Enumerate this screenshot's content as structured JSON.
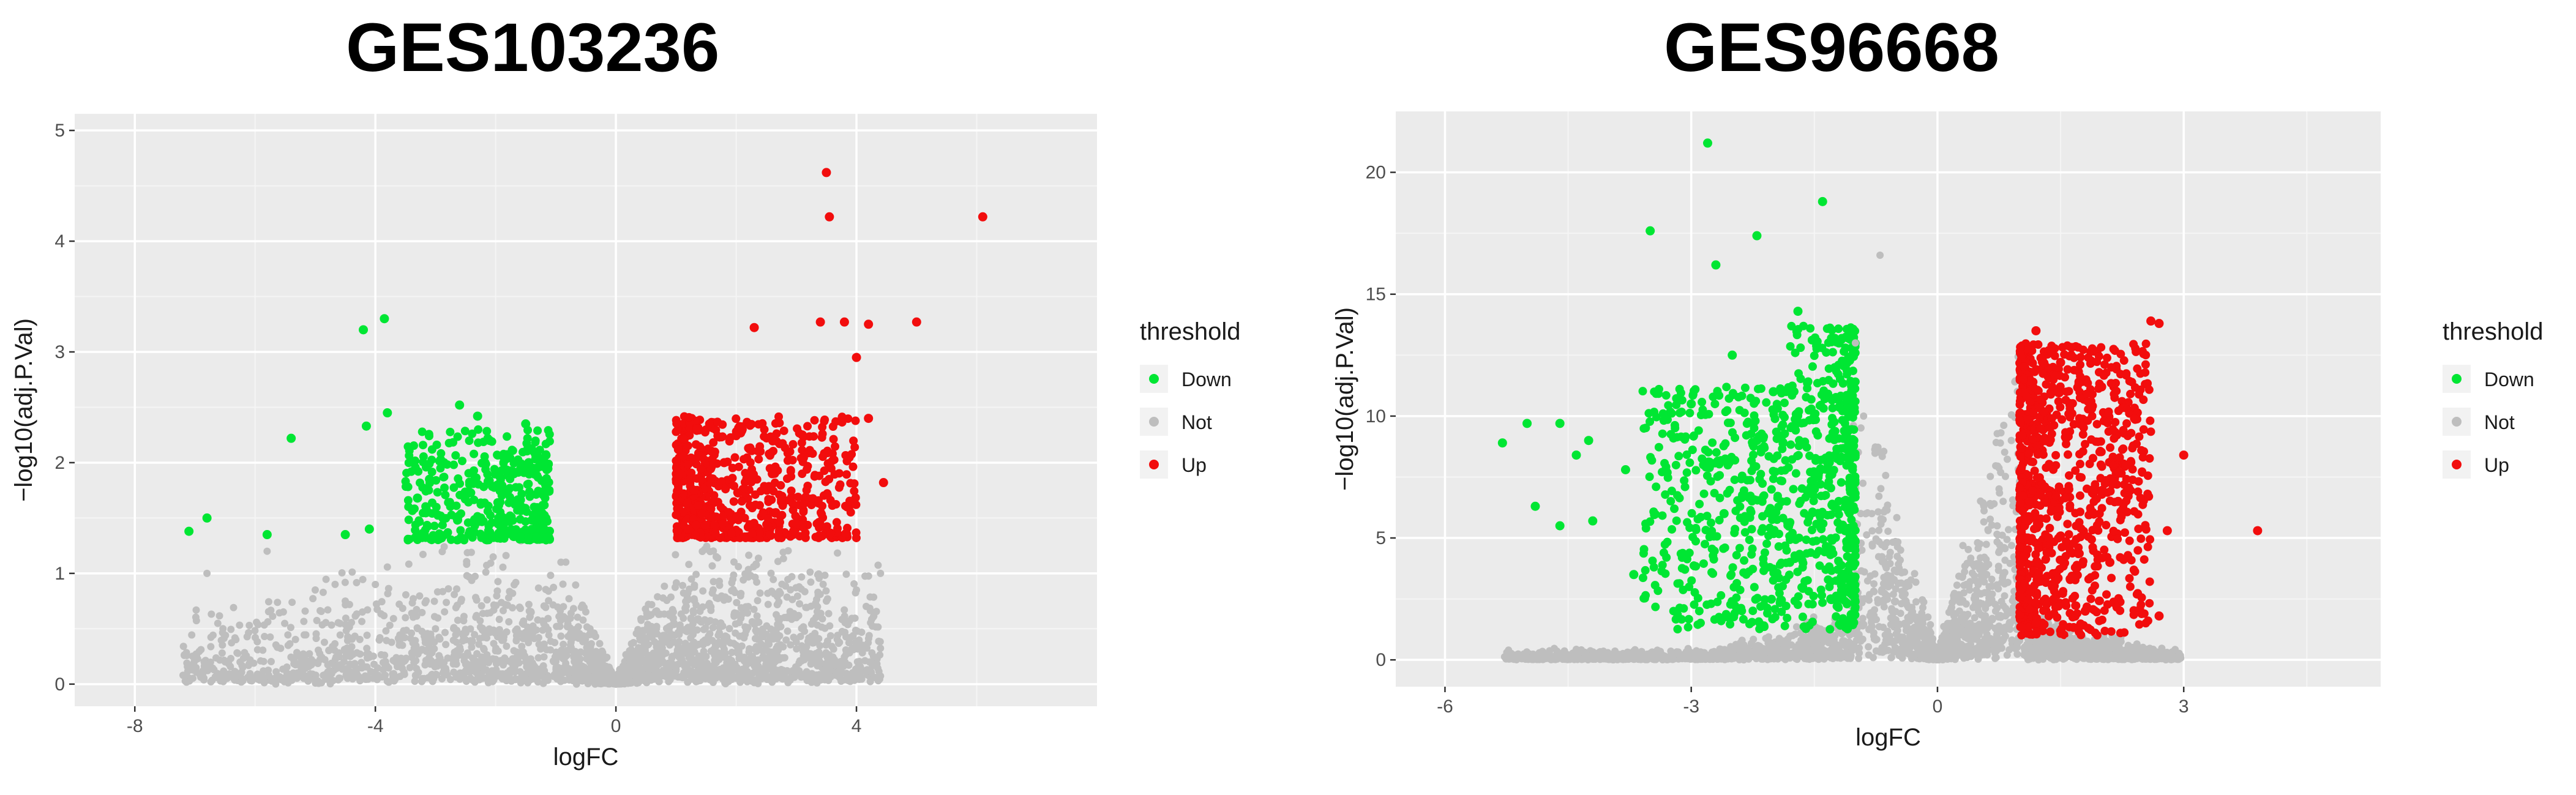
{
  "chart_data": [
    {
      "type": "scatter",
      "title": "GES103236",
      "xlabel": "logFC",
      "ylabel": "−log10(adj.P.Val)",
      "xlim": [
        -9,
        8
      ],
      "ylim": [
        -0.2,
        5.15
      ],
      "xticks": [
        -8,
        -4,
        0,
        4
      ],
      "xtick_labels": [
        "-8",
        "-4",
        "0",
        "4"
      ],
      "yticks": [
        0,
        1,
        2,
        3,
        4,
        5
      ],
      "ytick_labels": [
        "0",
        "1",
        "2",
        "3",
        "4",
        "5"
      ],
      "grid": true,
      "legend": {
        "title": "threshold",
        "position": "right",
        "entries": [
          "Down",
          "Not",
          "Up"
        ]
      },
      "colors": {
        "Down": "#00e633",
        "Not": "#bebebe",
        "Up": "#f20d0d"
      },
      "series": [
        {
          "name": "Down",
          "points": [
            [
              -7.1,
              1.38
            ],
            [
              -6.8,
              1.5
            ],
            [
              -5.8,
              1.35
            ],
            [
              -5.4,
              2.22
            ],
            [
              -4.5,
              1.35
            ],
            [
              -4.2,
              3.2
            ],
            [
              -4.15,
              2.33
            ],
            [
              -4.1,
              1.4
            ],
            [
              -3.85,
              3.3
            ],
            [
              -3.8,
              2.45
            ],
            [
              -2.6,
              2.52
            ],
            [
              -2.3,
              2.42
            ],
            [
              -1.5,
              2.35
            ],
            [
              -2.1,
              2.2
            ],
            [
              -3.1,
              1.85
            ],
            [
              -1.95,
              1.5
            ],
            [
              -2.9,
              1.32
            ],
            [
              -1.2,
              1.4
            ],
            [
              -1.45,
              2.0
            ],
            [
              -3.3,
              1.68
            ]
          ]
        },
        {
          "name": "Not",
          "points": [
            [
              -6.8,
              1.0
            ],
            [
              -5.8,
              1.2
            ],
            [
              -5.0,
              0.85
            ],
            [
              -4.5,
              0.75
            ],
            [
              -4.0,
              0.9
            ],
            [
              -3.5,
              0.6
            ],
            [
              -3.0,
              0.5
            ],
            [
              -2.5,
              0.4
            ],
            [
              -2.0,
              0.3
            ],
            [
              -1.5,
              0.2
            ],
            [
              -1.0,
              0.1
            ],
            [
              -0.5,
              0.04
            ],
            [
              0.0,
              0.0
            ],
            [
              0.5,
              0.05
            ],
            [
              1.0,
              0.12
            ],
            [
              1.5,
              0.25
            ],
            [
              2.0,
              0.35
            ],
            [
              2.5,
              0.45
            ],
            [
              3.0,
              0.6
            ],
            [
              3.5,
              0.75
            ],
            [
              4.0,
              0.85
            ],
            [
              4.4,
              1.0
            ]
          ]
        },
        {
          "name": "Up",
          "points": [
            [
              3.5,
              4.62
            ],
            [
              3.55,
              4.22
            ],
            [
              6.1,
              4.22
            ],
            [
              2.3,
              3.22
            ],
            [
              3.4,
              3.27
            ],
            [
              3.8,
              3.27
            ],
            [
              4.2,
              3.25
            ],
            [
              5.0,
              3.27
            ],
            [
              4.0,
              2.95
            ],
            [
              4.2,
              2.4
            ],
            [
              4.45,
              1.82
            ],
            [
              1.2,
              1.4
            ],
            [
              3.0,
              1.45
            ],
            [
              1.8,
              2.0
            ],
            [
              2.6,
              1.9
            ],
            [
              1.3,
              1.75
            ],
            [
              2.1,
              2.3
            ],
            [
              3.1,
              2.25
            ]
          ]
        }
      ]
    },
    {
      "type": "scatter",
      "title": "GES96668",
      "xlabel": "logFC",
      "ylabel": "−log10(adj.P.Val)",
      "xlim": [
        -6.6,
        5.4
      ],
      "ylim": [
        -1.1,
        22.5
      ],
      "xticks": [
        -6,
        -3,
        0,
        3
      ],
      "xtick_labels": [
        "-6",
        "-3",
        "0",
        "3"
      ],
      "yticks": [
        0,
        5,
        10,
        15,
        20
      ],
      "ytick_labels": [
        "0",
        "5",
        "10",
        "15",
        "20"
      ],
      "grid": true,
      "legend": {
        "title": "threshold",
        "position": "right",
        "entries": [
          "Down",
          "Not",
          "Up"
        ]
      },
      "colors": {
        "Down": "#00e633",
        "Not": "#bebebe",
        "Up": "#f20d0d"
      },
      "series": [
        {
          "name": "Down",
          "points": [
            [
              -5.3,
              8.9
            ],
            [
              -5.0,
              9.7
            ],
            [
              -4.9,
              6.3
            ],
            [
              -4.6,
              5.5
            ],
            [
              -4.6,
              9.7
            ],
            [
              -4.4,
              8.4
            ],
            [
              -4.25,
              9.0
            ],
            [
              -4.2,
              5.7
            ],
            [
              -3.8,
              7.8
            ],
            [
              -3.7,
              3.5
            ],
            [
              -3.5,
              17.6
            ],
            [
              -2.8,
              21.2
            ],
            [
              -2.7,
              16.2
            ],
            [
              -2.2,
              17.4
            ],
            [
              -1.4,
              18.8
            ],
            [
              -1.7,
              14.3
            ],
            [
              -2.5,
              12.5
            ],
            [
              -3.0,
              10.5
            ],
            [
              -2.0,
              11.0
            ],
            [
              -1.5,
              7.0
            ],
            [
              -2.6,
              6.0
            ],
            [
              -1.8,
              4.0
            ],
            [
              -1.3,
              2.5
            ],
            [
              -2.2,
              9.0
            ],
            [
              -1.2,
              13.0
            ]
          ]
        },
        {
          "name": "Not",
          "points": [
            [
              -1.0,
              13.0
            ],
            [
              -0.9,
              10.0
            ],
            [
              -0.8,
              6.0
            ],
            [
              -0.6,
              3.0
            ],
            [
              -0.4,
              1.5
            ],
            [
              -0.2,
              0.5
            ],
            [
              0.0,
              0.0
            ],
            [
              0.2,
              0.5
            ],
            [
              0.4,
              1.5
            ],
            [
              0.6,
              3.5
            ],
            [
              0.8,
              6.5
            ],
            [
              0.9,
              9.0
            ],
            [
              -2.0,
              0.5
            ],
            [
              -1.5,
              0.8
            ],
            [
              1.5,
              0.6
            ],
            [
              2.0,
              0.5
            ],
            [
              -0.7,
              16.6
            ],
            [
              -2.4,
              0.7
            ],
            [
              1.6,
              0.8
            ]
          ]
        },
        {
          "name": "Up",
          "points": [
            [
              1.2,
              13.5
            ],
            [
              1.5,
              12.2
            ],
            [
              2.6,
              13.9
            ],
            [
              2.7,
              13.8
            ],
            [
              2.0,
              11.2
            ],
            [
              2.4,
              9.9
            ],
            [
              3.0,
              8.4
            ],
            [
              3.9,
              5.3
            ],
            [
              2.7,
              1.8
            ],
            [
              2.8,
              5.3
            ],
            [
              1.2,
              1.5
            ],
            [
              1.1,
              5.0
            ],
            [
              1.3,
              9.0
            ],
            [
              1.6,
              7.0
            ],
            [
              2.1,
              4.0
            ],
            [
              1.8,
              2.0
            ],
            [
              2.2,
              6.5
            ],
            [
              1.4,
              3.0
            ]
          ]
        }
      ]
    }
  ]
}
